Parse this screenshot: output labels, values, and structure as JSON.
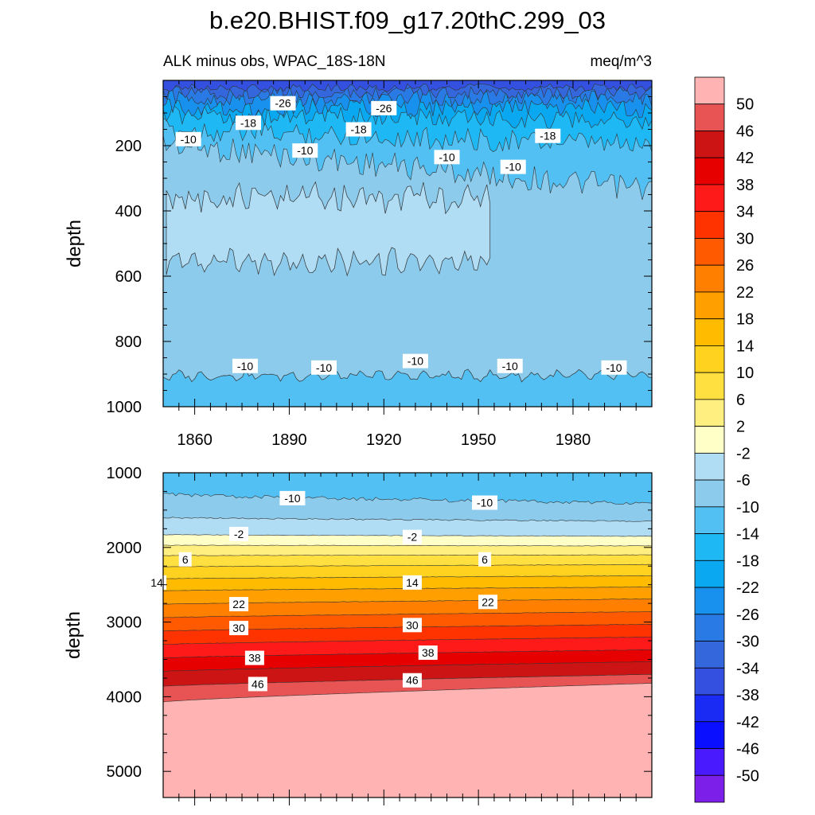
{
  "title": "b.e20.BHIST.f09_g17.20thC.299_03",
  "left_subtitle": "ALK minus obs, WPAC_18S-18N",
  "right_subtitle": "meq/m^3",
  "chart_data": [
    {
      "type": "heatmap",
      "panel": "upper",
      "ylabel": "depth",
      "xlim": [
        1850,
        2005
      ],
      "ylim": [
        1000,
        0
      ],
      "x_ticks": [
        "1860",
        "1890",
        "1920",
        "1950",
        "1980"
      ],
      "y_ticks": [
        "200",
        "400",
        "600",
        "800",
        "1000"
      ],
      "contour_labels": [
        {
          "text": "-26",
          "x": 1888,
          "y": 70
        },
        {
          "text": "-26",
          "x": 1920,
          "y": 85
        },
        {
          "text": "-18",
          "x": 1877,
          "y": 130
        },
        {
          "text": "-18",
          "x": 1912,
          "y": 150
        },
        {
          "text": "-18",
          "x": 1972,
          "y": 170
        },
        {
          "text": "-10",
          "x": 1858,
          "y": 180
        },
        {
          "text": "-10",
          "x": 1895,
          "y": 215
        },
        {
          "text": "-10",
          "x": 1940,
          "y": 235
        },
        {
          "text": "-10",
          "x": 1961,
          "y": 265
        },
        {
          "text": "-10",
          "x": 1876,
          "y": 875
        },
        {
          "text": "-10",
          "x": 1901,
          "y": 880
        },
        {
          "text": "-10",
          "x": 1930,
          "y": 860
        },
        {
          "text": "-10",
          "x": 1960,
          "y": 875
        },
        {
          "text": "-10",
          "x": 1993,
          "y": 880
        }
      ]
    },
    {
      "type": "heatmap",
      "panel": "lower",
      "ylabel": "depth",
      "xlim": [
        1850,
        2005
      ],
      "ylim": [
        5350,
        1000
      ],
      "y_ticks": [
        "1000",
        "2000",
        "3000",
        "4000",
        "5000"
      ],
      "contour_labels": [
        {
          "text": "-10",
          "x": 1891,
          "y": 1340
        },
        {
          "text": "-10",
          "x": 1952,
          "y": 1400
        },
        {
          "text": "-2",
          "x": 1874,
          "y": 1820
        },
        {
          "text": "-2",
          "x": 1929,
          "y": 1860
        },
        {
          "text": "6",
          "x": 1857,
          "y": 2160
        },
        {
          "text": "6",
          "x": 1952,
          "y": 2160
        },
        {
          "text": "14",
          "x": 1848,
          "y": 2470
        },
        {
          "text": "14",
          "x": 1929,
          "y": 2470
        },
        {
          "text": "22",
          "x": 1874,
          "y": 2760
        },
        {
          "text": "22",
          "x": 1953,
          "y": 2730
        },
        {
          "text": "30",
          "x": 1874,
          "y": 3080
        },
        {
          "text": "30",
          "x": 1929,
          "y": 3040
        },
        {
          "text": "38",
          "x": 1879,
          "y": 3480
        },
        {
          "text": "38",
          "x": 1934,
          "y": 3410
        },
        {
          "text": "46",
          "x": 1880,
          "y": 3830
        },
        {
          "text": "46",
          "x": 1929,
          "y": 3780
        }
      ]
    }
  ],
  "colorbar": {
    "labels": [
      "50",
      "46",
      "42",
      "38",
      "34",
      "30",
      "26",
      "22",
      "18",
      "14",
      "10",
      "6",
      "2",
      "-2",
      "-6",
      "-10",
      "-14",
      "-18",
      "-22",
      "-26",
      "-30",
      "-34",
      "-38",
      "-42",
      "-46",
      "-50"
    ],
    "colors": [
      "#ffb3b3",
      "#e85454",
      "#cc1414",
      "#e60000",
      "#ff1a1a",
      "#ff3300",
      "#ff5a00",
      "#ff7f00",
      "#ffa000",
      "#ffbb00",
      "#ffd21f",
      "#ffe040",
      "#ffee80",
      "#ffffc8",
      "#b0dcf4",
      "#8ccbeb",
      "#52c0f2",
      "#1eb9f5",
      "#0aa8f0",
      "#1890ee",
      "#2a7ae6",
      "#3466dc",
      "#3450e0",
      "#1a2cf4",
      "#0a10ff",
      "#4a1aff",
      "#7c1fe8"
    ]
  }
}
